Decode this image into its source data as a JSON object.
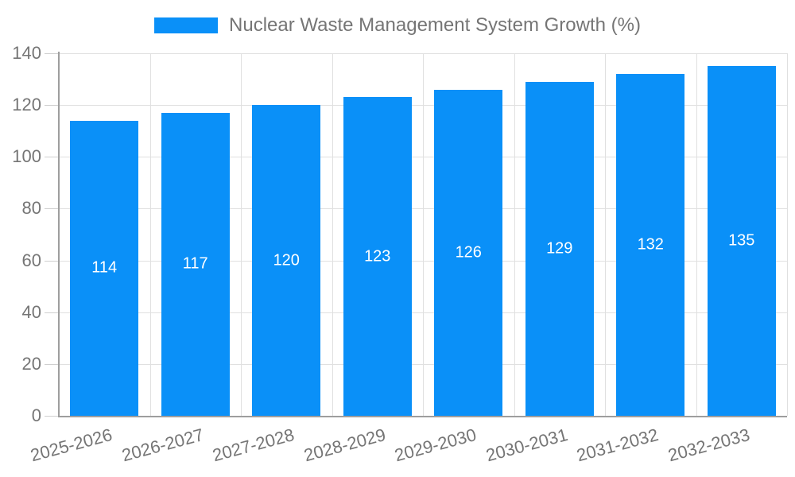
{
  "chart_data": {
    "type": "bar",
    "title": "Nuclear Waste Management System Growth (%)",
    "legend": {
      "position": "top",
      "entries": [
        "Nuclear Waste Management System Growth (%)"
      ]
    },
    "categories": [
      "2025-2026",
      "2026-2027",
      "2027-2028",
      "2028-2029",
      "2029-2030",
      "2030-2031",
      "2031-2032",
      "2032-2033"
    ],
    "values": [
      114,
      117,
      120,
      123,
      126,
      129,
      132,
      135
    ],
    "xlabel": "",
    "ylabel": "",
    "ylim": [
      0,
      140
    ],
    "yticks": [
      0,
      20,
      40,
      60,
      80,
      100,
      120,
      140
    ],
    "grid": true,
    "value_labels_position": "inside-center",
    "x_tick_rotation_deg": -15
  },
  "colors": {
    "background": "#ffffff",
    "bar": "#0a90f8",
    "grid": "#e0e0e0",
    "tick_mark": "#cfcfcf",
    "axis": "#9e9e9e",
    "tick_text": "#757575",
    "legend_text": "#757575",
    "value_label": "#ffffff"
  }
}
